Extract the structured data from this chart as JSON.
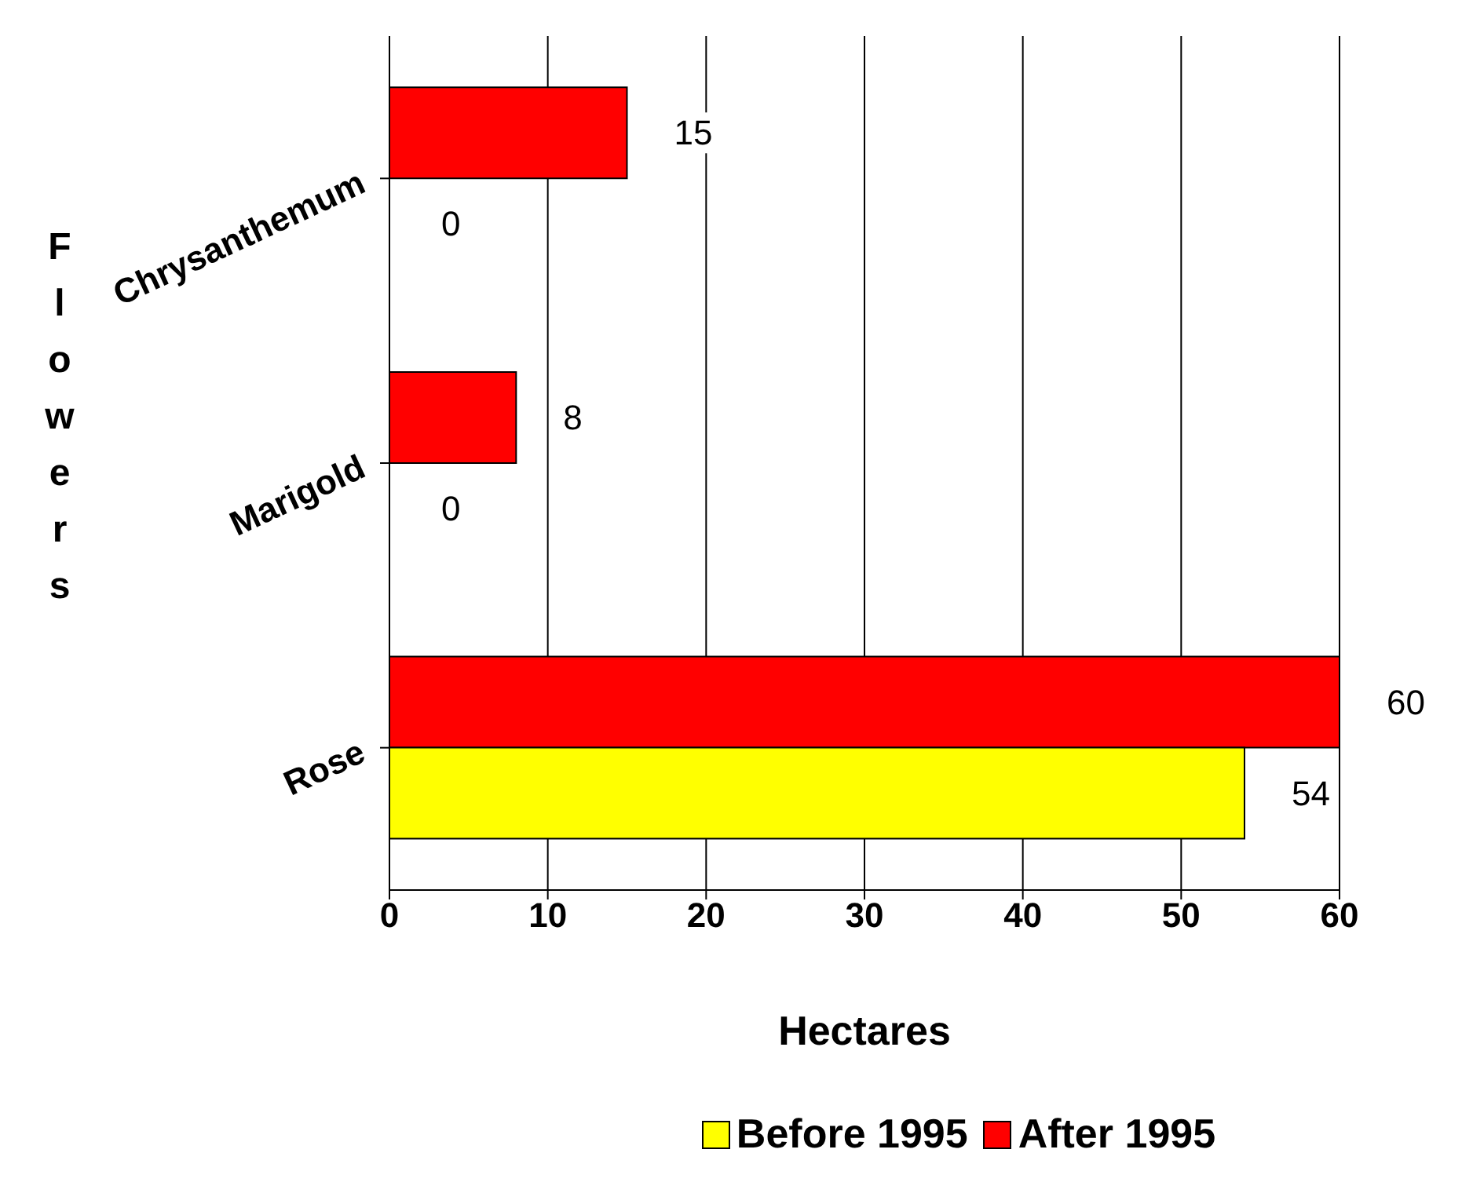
{
  "chart_data": {
    "type": "bar",
    "orientation": "horizontal",
    "categories": [
      "Chrysanthemum",
      "Marigold",
      "Rose"
    ],
    "series": [
      {
        "name": "Before 1995",
        "color": "#ffff00",
        "values": [
          0,
          0,
          54
        ]
      },
      {
        "name": "After 1995",
        "color": "#ff0000",
        "values": [
          15,
          8,
          60
        ]
      }
    ],
    "xlim": [
      0,
      60
    ],
    "xticks": [
      0,
      10,
      20,
      30,
      40,
      50,
      60
    ],
    "xlabel": "Hectares",
    "ylabel": "Flowers",
    "grid": "x",
    "data_labels": true,
    "legend": "bottom"
  }
}
